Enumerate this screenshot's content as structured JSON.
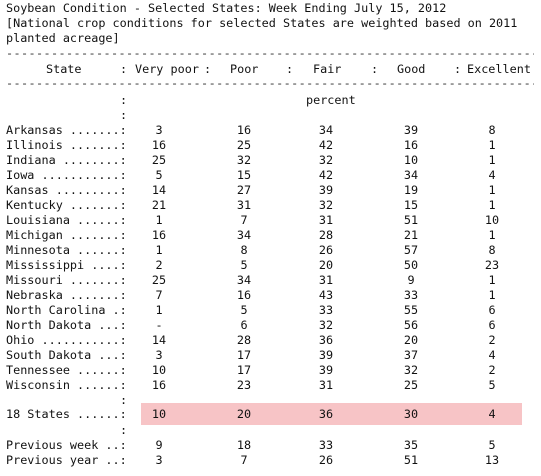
{
  "title": "Soybean Condition - Selected States: Week Ending July 15, 2012",
  "note_line1": "[National crop conditions for selected States are weighted based on 2011",
  "note_line2": "planted acreage]",
  "rule": "---------------------------------------------------------------------------------------------",
  "columns": [
    "State",
    "Very poor",
    "Poor",
    "Fair",
    "Good",
    "Excellent"
  ],
  "unit": "percent",
  "states": [
    {
      "label": "Arkansas .......:",
      "values": [
        "3",
        "16",
        "34",
        "39",
        "8"
      ]
    },
    {
      "label": "Illinois .......:",
      "values": [
        "16",
        "25",
        "42",
        "16",
        "1"
      ]
    },
    {
      "label": "Indiana ........:",
      "values": [
        "25",
        "32",
        "32",
        "10",
        "1"
      ]
    },
    {
      "label": "Iowa ...........:",
      "values": [
        "5",
        "15",
        "42",
        "34",
        "4"
      ]
    },
    {
      "label": "Kansas .........:",
      "values": [
        "14",
        "27",
        "39",
        "19",
        "1"
      ]
    },
    {
      "label": "Kentucky .......:",
      "values": [
        "21",
        "31",
        "32",
        "15",
        "1"
      ]
    },
    {
      "label": "Louisiana ......:",
      "values": [
        "1",
        "7",
        "31",
        "51",
        "10"
      ]
    },
    {
      "label": "Michigan .......:",
      "values": [
        "16",
        "34",
        "28",
        "21",
        "1"
      ]
    },
    {
      "label": "Minnesota ......:",
      "values": [
        "1",
        "8",
        "26",
        "57",
        "8"
      ]
    },
    {
      "label": "Mississippi ....:",
      "values": [
        "2",
        "5",
        "20",
        "50",
        "23"
      ]
    },
    {
      "label": "Missouri .......:",
      "values": [
        "25",
        "34",
        "31",
        "9",
        "1"
      ]
    },
    {
      "label": "Nebraska .......:",
      "values": [
        "7",
        "16",
        "43",
        "33",
        "1"
      ]
    },
    {
      "label": "North Carolina .:",
      "values": [
        "1",
        "5",
        "33",
        "55",
        "6"
      ]
    },
    {
      "label": "North Dakota ...:",
      "values": [
        "-",
        "6",
        "32",
        "56",
        "6"
      ]
    },
    {
      "label": "Ohio ...........:",
      "values": [
        "14",
        "28",
        "36",
        "20",
        "2"
      ]
    },
    {
      "label": "South Dakota ...:",
      "values": [
        "3",
        "17",
        "39",
        "37",
        "4"
      ]
    },
    {
      "label": "Tennessee ......:",
      "values": [
        "10",
        "17",
        "39",
        "32",
        "2"
      ]
    },
    {
      "label": "Wisconsin ......:",
      "values": [
        "16",
        "23",
        "31",
        "25",
        "5"
      ]
    }
  ],
  "total": {
    "label": "18 States ......:",
    "values": [
      "10",
      "20",
      "36",
      "30",
      "4"
    ]
  },
  "previous_week": {
    "label": "Previous week ..:",
    "values": [
      "9",
      "18",
      "33",
      "35",
      "5"
    ]
  },
  "previous_year": {
    "label": "Previous year ..:",
    "values": [
      "3",
      "7",
      "26",
      "51",
      "13"
    ]
  },
  "highlight_color": "#f7c4c6"
}
